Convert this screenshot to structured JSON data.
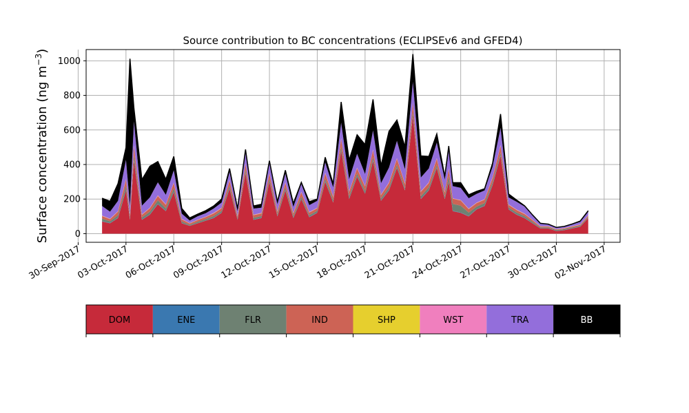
{
  "chart_data": {
    "type": "area",
    "stacked": true,
    "title": "Source contribution to BC concentrations (ECLIPSEv6 and GFED4)",
    "ylabel": "Surface concentration (ng m",
    "ylabel_exponent": "−3",
    "ylabel_suffix": ")",
    "xlabel": "",
    "ylim": [
      -50,
      1065
    ],
    "xlim": [
      "2017-09-30T12:00",
      "2017-11-03T00:00"
    ],
    "yticks": [
      0,
      200,
      400,
      600,
      800,
      1000
    ],
    "xticks": [
      "30-Sep-2017",
      "03-Oct-2017",
      "06-Oct-2017",
      "09-Oct-2017",
      "12-Oct-2017",
      "15-Oct-2017",
      "18-Oct-2017",
      "21-Oct-2017",
      "24-Oct-2017",
      "27-Oct-2017",
      "30-Oct-2017",
      "02-Nov-2017"
    ],
    "grid": true,
    "legend_placement": "below",
    "x": [
      "2017-10-01T12:00",
      "2017-10-02T00:00",
      "2017-10-02T12:00",
      "2017-10-03T00:00",
      "2017-10-03T06:00",
      "2017-10-03T12:00",
      "2017-10-04T00:00",
      "2017-10-04T12:00",
      "2017-10-05T00:00",
      "2017-10-05T12:00",
      "2017-10-06T00:00",
      "2017-10-06T12:00",
      "2017-10-07T00:00",
      "2017-10-07T12:00",
      "2017-10-08T00:00",
      "2017-10-08T12:00",
      "2017-10-09T00:00",
      "2017-10-09T12:00",
      "2017-10-10T00:00",
      "2017-10-10T12:00",
      "2017-10-11T00:00",
      "2017-10-11T12:00",
      "2017-10-12T00:00",
      "2017-10-12T12:00",
      "2017-10-13T00:00",
      "2017-10-13T12:00",
      "2017-10-14T00:00",
      "2017-10-14T12:00",
      "2017-10-15T00:00",
      "2017-10-15T12:00",
      "2017-10-16T00:00",
      "2017-10-16T12:00",
      "2017-10-17T00:00",
      "2017-10-17T12:00",
      "2017-10-18T00:00",
      "2017-10-18T12:00",
      "2017-10-19T00:00",
      "2017-10-19T12:00",
      "2017-10-20T00:00",
      "2017-10-20T12:00",
      "2017-10-21T00:00",
      "2017-10-21T12:00",
      "2017-10-22T00:00",
      "2017-10-22T12:00",
      "2017-10-23T00:00",
      "2017-10-23T06:00",
      "2017-10-23T12:00",
      "2017-10-24T00:00",
      "2017-10-24T12:00",
      "2017-10-25T00:00",
      "2017-10-25T12:00",
      "2017-10-26T00:00",
      "2017-10-26T12:00",
      "2017-10-27T00:00",
      "2017-10-27T12:00",
      "2017-10-28T00:00",
      "2017-10-28T12:00",
      "2017-10-29T00:00",
      "2017-10-29T12:00",
      "2017-10-30T00:00",
      "2017-10-30T12:00",
      "2017-10-31T00:00",
      "2017-10-31T12:00",
      "2017-11-01T00:00"
    ],
    "series": [
      {
        "name": "DOM",
        "color": "#c62a3a",
        "values": [
          70,
          60,
          90,
          250,
          80,
          420,
          80,
          110,
          170,
          130,
          240,
          60,
          45,
          60,
          75,
          90,
          120,
          260,
          80,
          350,
          80,
          90,
          300,
          100,
          250,
          90,
          200,
          95,
          120,
          300,
          180,
          480,
          200,
          330,
          230,
          420,
          190,
          250,
          380,
          250,
          680,
          200,
          250,
          380,
          200,
          300,
          130,
          120,
          100,
          140,
          160,
          280,
          450,
          140,
          110,
          90,
          60,
          30,
          30,
          15,
          20,
          30,
          40,
          90
        ]
      },
      {
        "name": "ENE",
        "color": "#3a78b0",
        "values": [
          2,
          2,
          2,
          3,
          2,
          4,
          2,
          2,
          3,
          2,
          3,
          1,
          1,
          1,
          1,
          2,
          2,
          3,
          2,
          3,
          2,
          2,
          3,
          2,
          3,
          2,
          2,
          2,
          2,
          3,
          2,
          3,
          2,
          3,
          2,
          3,
          2,
          3,
          3,
          2,
          4,
          2,
          3,
          3,
          2,
          3,
          2,
          2,
          2,
          2,
          2,
          3,
          3,
          2,
          2,
          2,
          1,
          1,
          1,
          1,
          1,
          1,
          1,
          1
        ]
      },
      {
        "name": "FLR",
        "color": "#6e8172",
        "values": [
          15,
          10,
          15,
          25,
          12,
          30,
          12,
          15,
          20,
          15,
          20,
          10,
          5,
          8,
          8,
          10,
          10,
          15,
          8,
          15,
          10,
          10,
          15,
          10,
          15,
          10,
          12,
          10,
          10,
          15,
          12,
          20,
          15,
          15,
          15,
          20,
          12,
          15,
          15,
          12,
          20,
          15,
          15,
          15,
          12,
          30,
          40,
          40,
          20,
          15,
          15,
          15,
          15,
          10,
          10,
          10,
          8,
          5,
          5,
          5,
          5,
          5,
          5,
          5
        ]
      },
      {
        "name": "IND",
        "color": "#cd6355",
        "values": [
          15,
          12,
          20,
          35,
          15,
          50,
          15,
          20,
          25,
          20,
          30,
          12,
          8,
          10,
          12,
          15,
          15,
          30,
          12,
          35,
          15,
          15,
          30,
          15,
          25,
          15,
          25,
          15,
          15,
          30,
          20,
          45,
          25,
          30,
          25,
          40,
          20,
          25,
          35,
          25,
          50,
          25,
          25,
          35,
          25,
          40,
          30,
          30,
          20,
          20,
          20,
          25,
          40,
          15,
          15,
          12,
          10,
          5,
          5,
          3,
          4,
          5,
          5,
          8
        ]
      },
      {
        "name": "SHP",
        "color": "#e6cf2e",
        "values": [
          1,
          1,
          1,
          2,
          1,
          2,
          1,
          1,
          1,
          1,
          1,
          1,
          1,
          1,
          1,
          1,
          1,
          1,
          1,
          1,
          1,
          1,
          1,
          1,
          1,
          1,
          1,
          1,
          1,
          1,
          1,
          1,
          1,
          1,
          1,
          1,
          1,
          1,
          1,
          1,
          1,
          1,
          1,
          1,
          1,
          1,
          1,
          1,
          1,
          1,
          1,
          1,
          1,
          1,
          1,
          1,
          1,
          1,
          1,
          1,
          1,
          1,
          1,
          1
        ]
      },
      {
        "name": "WST",
        "color": "#f07fbe",
        "values": [
          2,
          2,
          2,
          3,
          2,
          4,
          2,
          2,
          3,
          2,
          3,
          2,
          1,
          1,
          1,
          2,
          2,
          3,
          2,
          3,
          2,
          2,
          3,
          2,
          3,
          2,
          2,
          2,
          2,
          3,
          2,
          3,
          2,
          3,
          2,
          3,
          2,
          3,
          3,
          2,
          4,
          2,
          3,
          3,
          2,
          3,
          2,
          2,
          2,
          2,
          2,
          3,
          3,
          2,
          2,
          2,
          1,
          1,
          1,
          1,
          1,
          1,
          1,
          1
        ]
      },
      {
        "name": "TRA",
        "color": "#936edb",
        "values": [
          55,
          40,
          60,
          110,
          50,
          140,
          50,
          60,
          75,
          55,
          70,
          30,
          15,
          20,
          20,
          25,
          30,
          45,
          25,
          60,
          35,
          30,
          55,
          40,
          50,
          35,
          45,
          40,
          40,
          60,
          50,
          90,
          70,
          80,
          70,
          110,
          65,
          85,
          100,
          80,
          120,
          80,
          80,
          90,
          70,
          100,
          70,
          70,
          60,
          50,
          50,
          60,
          100,
          40,
          45,
          40,
          25,
          15,
          10,
          8,
          8,
          10,
          15,
          20
        ]
      },
      {
        "name": "BB",
        "color": "#000000",
        "values": [
          45,
          60,
          100,
          70,
          850,
          75,
          150,
          180,
          120,
          90,
          80,
          30,
          15,
          12,
          15,
          15,
          20,
          20,
          15,
          20,
          15,
          20,
          15,
          15,
          20,
          20,
          10,
          20,
          10,
          30,
          20,
          120,
          110,
          110,
          170,
          180,
          100,
          210,
          120,
          130,
          160,
          125,
          70,
          50,
          20,
          30,
          20,
          30,
          20,
          15,
          10,
          20,
          80,
          20,
          10,
          5,
          3,
          2,
          2,
          2,
          2,
          3,
          5,
          7
        ]
      }
    ]
  },
  "legend": {
    "items": [
      {
        "label": "DOM",
        "color": "#c62a3a",
        "text_color": "#000000"
      },
      {
        "label": "ENE",
        "color": "#3a78b0",
        "text_color": "#000000"
      },
      {
        "label": "FLR",
        "color": "#6e8172",
        "text_color": "#000000"
      },
      {
        "label": "IND",
        "color": "#cd6355",
        "text_color": "#000000"
      },
      {
        "label": "SHP",
        "color": "#e6cf2e",
        "text_color": "#000000"
      },
      {
        "label": "WST",
        "color": "#f07fbe",
        "text_color": "#000000"
      },
      {
        "label": "TRA",
        "color": "#936edb",
        "text_color": "#000000"
      },
      {
        "label": "BB",
        "color": "#000000",
        "text_color": "#ffffff"
      }
    ]
  }
}
